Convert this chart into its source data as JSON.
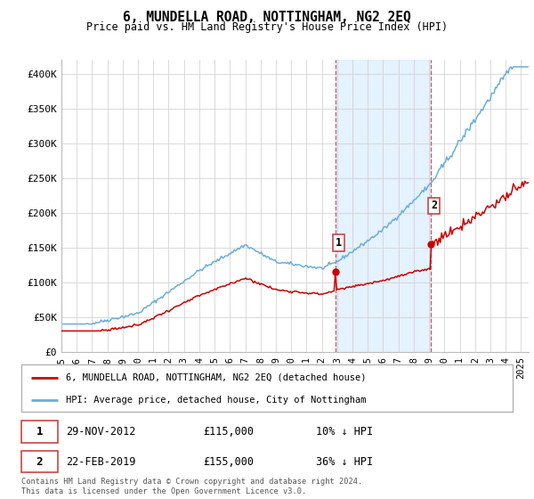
{
  "title": "6, MUNDELLA ROAD, NOTTINGHAM, NG2 2EQ",
  "subtitle": "Price paid vs. HM Land Registry's House Price Index (HPI)",
  "ylabel_ticks": [
    "£0",
    "£50K",
    "£100K",
    "£150K",
    "£200K",
    "£250K",
    "£300K",
    "£350K",
    "£400K"
  ],
  "ytick_values": [
    0,
    50000,
    100000,
    150000,
    200000,
    250000,
    300000,
    350000,
    400000
  ],
  "ylim": [
    0,
    420000
  ],
  "xlim_start": 1995.0,
  "xlim_end": 2025.5,
  "hpi_color": "#6baed6",
  "price_color": "#cc0000",
  "marker1_date": 2012.917,
  "marker1_price": 115000,
  "marker2_date": 2019.125,
  "marker2_price": 155000,
  "shade_start": 2012.917,
  "shade_end": 2019.125,
  "legend_line1": "6, MUNDELLA ROAD, NOTTINGHAM, NG2 2EQ (detached house)",
  "legend_line2": "HPI: Average price, detached house, City of Nottingham",
  "footnote": "Contains HM Land Registry data © Crown copyright and database right 2024.\nThis data is licensed under the Open Government Licence v3.0.",
  "background_color": "#ffffff",
  "plot_bg_color": "#ffffff",
  "grid_color": "#cccccc"
}
